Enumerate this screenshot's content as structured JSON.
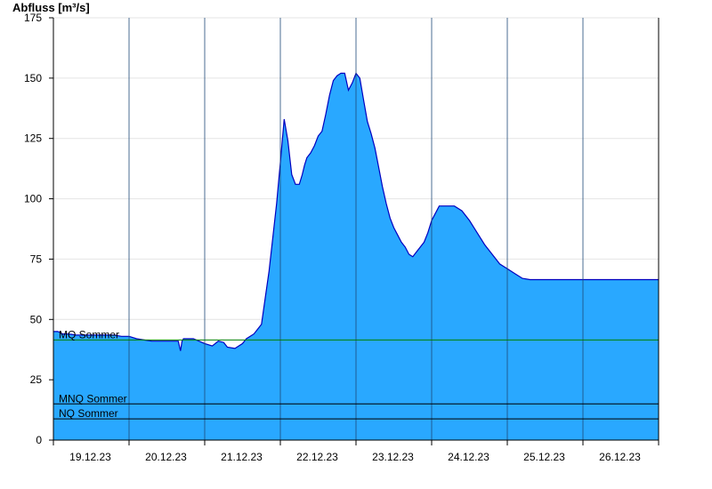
{
  "chart_data": {
    "type": "area",
    "title": "",
    "ylabel": "Abfluss [m³/s]",
    "xlabel": "",
    "ylim": [
      0,
      175
    ],
    "xlim": [
      0,
      8
    ],
    "yticks": [
      0,
      25,
      50,
      75,
      100,
      125,
      150,
      175
    ],
    "x_tick_labels": [
      "19.12.23",
      "20.12.23",
      "21.12.23",
      "22.12.23",
      "23.12.23",
      "24.12.23",
      "25.12.23",
      "26.12.23"
    ],
    "grid": "horizontal",
    "fill_color": "#29a8ff",
    "line_color": "#0000c0",
    "series": [
      {
        "x": [
          0.0,
          0.06,
          0.12,
          0.2,
          0.3,
          0.4,
          0.5,
          0.6,
          0.7,
          0.8,
          0.9,
          1.0,
          1.1,
          1.2,
          1.3,
          1.4,
          1.5,
          1.65,
          1.68,
          1.7,
          1.72,
          1.75,
          1.85,
          2.0,
          2.1,
          2.18,
          2.25,
          2.3,
          2.4,
          2.5,
          2.55,
          2.65,
          2.75,
          2.85,
          2.95,
          3.0,
          3.05,
          3.1,
          3.15,
          3.2,
          3.25,
          3.29,
          3.32,
          3.35,
          3.4,
          3.45,
          3.5,
          3.55,
          3.6,
          3.65,
          3.7,
          3.75,
          3.8,
          3.85,
          3.9,
          3.95,
          4.0,
          4.05,
          4.1,
          4.15,
          4.2,
          4.25,
          4.3,
          4.35,
          4.4,
          4.45,
          4.5,
          4.55,
          4.6,
          4.65,
          4.7,
          4.75,
          4.8,
          4.85,
          4.9,
          4.95,
          5.0,
          5.1,
          5.2,
          5.3,
          5.4,
          5.5,
          5.6,
          5.7,
          5.8,
          5.9,
          6.0,
          6.1,
          6.2,
          6.3,
          6.4,
          6.5,
          6.6,
          6.7,
          6.8,
          6.9,
          7.0,
          7.1,
          7.2,
          7.3,
          7.4,
          7.5,
          7.6,
          7.7,
          7.8,
          7.9,
          8.0
        ],
        "y": [
          45,
          45,
          44,
          44,
          43.5,
          43.5,
          43.5,
          43.5,
          43.5,
          43.5,
          43,
          43,
          42,
          41.5,
          41,
          41,
          41,
          41,
          37,
          41,
          42,
          42,
          42,
          40,
          39,
          41,
          40.5,
          38.5,
          38,
          40,
          42,
          44,
          48,
          70,
          98,
          115,
          133,
          124,
          110,
          106,
          106,
          110,
          114,
          117,
          119,
          122,
          126,
          128,
          135,
          143,
          149,
          151,
          152,
          152,
          145,
          148,
          152,
          150,
          141,
          132,
          127,
          121,
          113,
          105,
          98,
          92,
          88,
          85,
          82,
          80,
          77,
          76,
          78,
          80,
          82,
          86,
          91,
          97,
          97,
          97,
          95,
          91,
          86,
          81,
          77,
          73,
          71,
          69,
          67,
          66.5,
          66.5,
          66.5,
          66.5,
          66.5,
          66.5,
          66.5,
          66.5,
          66.5,
          66.5,
          66.5,
          66.5,
          66.5,
          66.5,
          66.5,
          66.5,
          66.5,
          66.5
        ]
      }
    ],
    "reference_lines": [
      {
        "label": "MQ Sommer",
        "value": 41.5,
        "color": "#008000"
      },
      {
        "label": "MNQ Sommer",
        "value": 15,
        "color": "#000000"
      },
      {
        "label": "NQ Sommer",
        "value": 8.8,
        "color": "#000000"
      }
    ]
  }
}
